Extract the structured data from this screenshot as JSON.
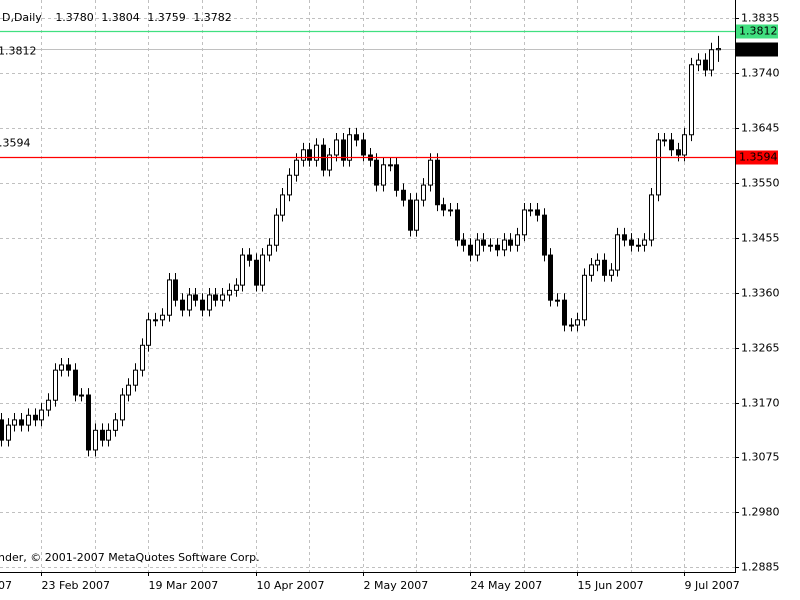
{
  "chart_data": {
    "type": "candlestick",
    "symbol_text": "D,Daily",
    "ohlc_labels": [
      "1.3780",
      "1.3804",
      "1.3759",
      "1.3782"
    ],
    "copyright": "nder, © 2001-2007 MetaQuotes Software Corp.",
    "left_fragment": "07",
    "categories": [
      null,
      null,
      null,
      null,
      null,
      null,
      "23 Feb 2007",
      null,
      null,
      null,
      null,
      null,
      null,
      null,
      null,
      null,
      null,
      null,
      null,
      null,
      null,
      null,
      "19 Mar 2007",
      null,
      null,
      null,
      null,
      null,
      null,
      null,
      null,
      null,
      null,
      null,
      null,
      null,
      null,
      null,
      "10 Apr 2007",
      null,
      null,
      null,
      null,
      null,
      null,
      null,
      null,
      null,
      null,
      null,
      null,
      null,
      null,
      null,
      "2 May 2007",
      null,
      null,
      null,
      null,
      null,
      null,
      null,
      null,
      null,
      null,
      null,
      null,
      null,
      null,
      null,
      "24 May 2007",
      null,
      null,
      null,
      null,
      null,
      null,
      null,
      null,
      null,
      null,
      null,
      null,
      null,
      null,
      null,
      "15 Jun 2007",
      null,
      null,
      null,
      null,
      null,
      null,
      null,
      null,
      null,
      null,
      null,
      null,
      null,
      null,
      null,
      "9 Jul 2007",
      null,
      null,
      null,
      null,
      null
    ],
    "open": [
      1.314,
      1.3105,
      1.3131,
      1.314,
      1.3131,
      1.3148,
      1.314,
      1.3157,
      1.3174,
      1.3226,
      1.3235,
      1.3226,
      1.3183,
      1.3183,
      1.3088,
      1.3122,
      1.3105,
      1.3122,
      1.314,
      1.3183,
      1.32,
      1.3226,
      1.3269,
      1.3313,
      1.3313,
      1.3321,
      1.3382,
      1.3347,
      1.333,
      1.3356,
      1.3347,
      1.333,
      1.3356,
      1.3347,
      1.3356,
      1.3364,
      1.3373,
      1.3425,
      1.3416,
      1.3373,
      1.3425,
      1.3442,
      1.3494,
      1.3529,
      1.3563,
      1.3589,
      1.3607,
      1.3589,
      1.3615,
      1.3572,
      1.3598,
      1.3624,
      1.3589,
      1.3633,
      1.3624,
      1.3598,
      1.3589,
      1.3546,
      1.3581,
      1.3581,
      1.3537,
      1.352,
      1.3468,
      1.352,
      1.3546,
      1.3589,
      1.3512,
      1.3503,
      1.3503,
      1.3451,
      1.3442,
      1.3425,
      1.3451,
      1.3442,
      1.3442,
      1.3434,
      1.3451,
      1.3442,
      1.346,
      1.3503,
      1.3503,
      1.3494,
      1.3425,
      1.3347,
      1.3347,
      1.3304,
      1.3304,
      1.3313,
      1.339,
      1.3408,
      1.3416,
      1.339,
      1.3399,
      1.346,
      1.3451,
      1.3442,
      1.3442,
      1.3451,
      1.3529,
      1.3624,
      1.3624,
      1.3607,
      1.3598,
      1.3633,
      1.3754,
      1.3762,
      1.3745,
      1.378
    ],
    "high": [
      1.3152,
      1.3143,
      1.3152,
      1.3152,
      1.316,
      1.316,
      1.3169,
      1.3186,
      1.3238,
      1.3247,
      1.3247,
      1.3238,
      1.3195,
      1.3195,
      1.3134,
      1.3134,
      1.3134,
      1.3152,
      1.3195,
      1.3212,
      1.3238,
      1.3281,
      1.3325,
      1.3325,
      1.3333,
      1.3394,
      1.3394,
      1.3359,
      1.3368,
      1.3368,
      1.3359,
      1.3368,
      1.3368,
      1.3368,
      1.3376,
      1.3385,
      1.3437,
      1.3437,
      1.3428,
      1.3437,
      1.3454,
      1.3506,
      1.3541,
      1.3575,
      1.3601,
      1.3619,
      1.3619,
      1.3627,
      1.3627,
      1.361,
      1.3636,
      1.3636,
      1.3645,
      1.3645,
      1.3636,
      1.361,
      1.3601,
      1.3593,
      1.3593,
      1.3593,
      1.3549,
      1.3532,
      1.3532,
      1.3558,
      1.3601,
      1.3601,
      1.3524,
      1.3515,
      1.3515,
      1.3463,
      1.3454,
      1.3463,
      1.3463,
      1.3454,
      1.3454,
      1.3463,
      1.3463,
      1.3472,
      1.3515,
      1.3515,
      1.3515,
      1.3506,
      1.3437,
      1.3359,
      1.3359,
      1.3316,
      1.3325,
      1.3402,
      1.342,
      1.3428,
      1.3428,
      1.3411,
      1.3472,
      1.3472,
      1.3463,
      1.3454,
      1.3463,
      1.3541,
      1.3636,
      1.3636,
      1.3636,
      1.3619,
      1.3645,
      1.3766,
      1.3774,
      1.3774,
      1.3792,
      1.3804
    ],
    "low": [
      1.3094,
      1.3094,
      1.312,
      1.312,
      1.312,
      1.3129,
      1.3129,
      1.3146,
      1.3163,
      1.3215,
      1.3215,
      1.3172,
      1.3172,
      1.3077,
      1.3077,
      1.3094,
      1.3094,
      1.3111,
      1.3129,
      1.3172,
      1.3189,
      1.3215,
      1.3258,
      1.3302,
      1.3302,
      1.331,
      1.3336,
      1.3319,
      1.3319,
      1.3336,
      1.3319,
      1.3319,
      1.3336,
      1.3336,
      1.3345,
      1.3353,
      1.3362,
      1.3405,
      1.3362,
      1.3362,
      1.3414,
      1.3431,
      1.3483,
      1.3518,
      1.3552,
      1.3578,
      1.3578,
      1.3578,
      1.3561,
      1.3561,
      1.3587,
      1.3578,
      1.3578,
      1.3613,
      1.3587,
      1.3578,
      1.3535,
      1.3535,
      1.357,
      1.3526,
      1.3509,
      1.3457,
      1.3457,
      1.3509,
      1.3535,
      1.3501,
      1.3492,
      1.3492,
      1.344,
      1.3431,
      1.3414,
      1.3414,
      1.3431,
      1.3431,
      1.3423,
      1.3423,
      1.3431,
      1.3431,
      1.3449,
      1.3492,
      1.3483,
      1.3414,
      1.3336,
      1.3336,
      1.3293,
      1.3293,
      1.3293,
      1.3302,
      1.3379,
      1.3397,
      1.3379,
      1.3379,
      1.3388,
      1.344,
      1.3431,
      1.3431,
      1.3431,
      1.344,
      1.3518,
      1.3613,
      1.3596,
      1.3587,
      1.3587,
      1.3622,
      1.3743,
      1.3734,
      1.3734,
      1.3759
    ],
    "close": [
      1.3105,
      1.3131,
      1.314,
      1.3131,
      1.3148,
      1.314,
      1.3157,
      1.3174,
      1.3226,
      1.3235,
      1.3226,
      1.3183,
      1.3183,
      1.3088,
      1.3122,
      1.3105,
      1.3122,
      1.314,
      1.3183,
      1.32,
      1.3226,
      1.3269,
      1.3313,
      1.3313,
      1.3321,
      1.3382,
      1.3347,
      1.333,
      1.3356,
      1.3347,
      1.333,
      1.3356,
      1.3347,
      1.3356,
      1.3364,
      1.3373,
      1.3425,
      1.3416,
      1.3373,
      1.3425,
      1.3442,
      1.3494,
      1.3529,
      1.3563,
      1.3589,
      1.3607,
      1.3589,
      1.3615,
      1.3572,
      1.3598,
      1.3624,
      1.3589,
      1.3633,
      1.3624,
      1.3598,
      1.3589,
      1.3546,
      1.3581,
      1.3581,
      1.3537,
      1.352,
      1.3468,
      1.352,
      1.3546,
      1.3589,
      1.3512,
      1.3503,
      1.3503,
      1.3451,
      1.3442,
      1.3425,
      1.3451,
      1.3442,
      1.3442,
      1.3434,
      1.3451,
      1.3442,
      1.346,
      1.3503,
      1.3503,
      1.3494,
      1.3425,
      1.3347,
      1.3347,
      1.3304,
      1.3304,
      1.3313,
      1.339,
      1.3408,
      1.3416,
      1.339,
      1.3399,
      1.346,
      1.3451,
      1.3442,
      1.3442,
      1.3451,
      1.3529,
      1.3624,
      1.3624,
      1.3607,
      1.3598,
      1.3633,
      1.3754,
      1.3762,
      1.3745,
      1.378,
      1.3782
    ],
    "bull_color": "#ffffff",
    "bear_color": "#000000",
    "candle_outline": "#000000",
    "grid": true,
    "grid_color": "#c0c0c0",
    "current_price_color": "#c0c0c0",
    "ylim": [
      1.2877,
      1.3866
    ],
    "yticks": [
      1.3835,
      {
        "value": 1.374,
        "label": "1.3740"
      },
      1.3645,
      {
        "value": 1.355,
        "label": "1.3550"
      },
      1.3455,
      {
        "value": 1.336,
        "label": "1.3360"
      },
      1.3265,
      {
        "value": 1.317,
        "label": "1.3170"
      },
      1.3075,
      {
        "value": 1.298,
        "label": "1.2980"
      },
      1.2885
    ],
    "levels": [
      {
        "value": 1.3812,
        "label": "1.3812",
        "color": "#40e080",
        "text_color": "#ffffff"
      },
      {
        "value": 1.3594,
        "label": "1.3594",
        "color": "#ff0000",
        "text_color": "#ffffff"
      }
    ]
  }
}
